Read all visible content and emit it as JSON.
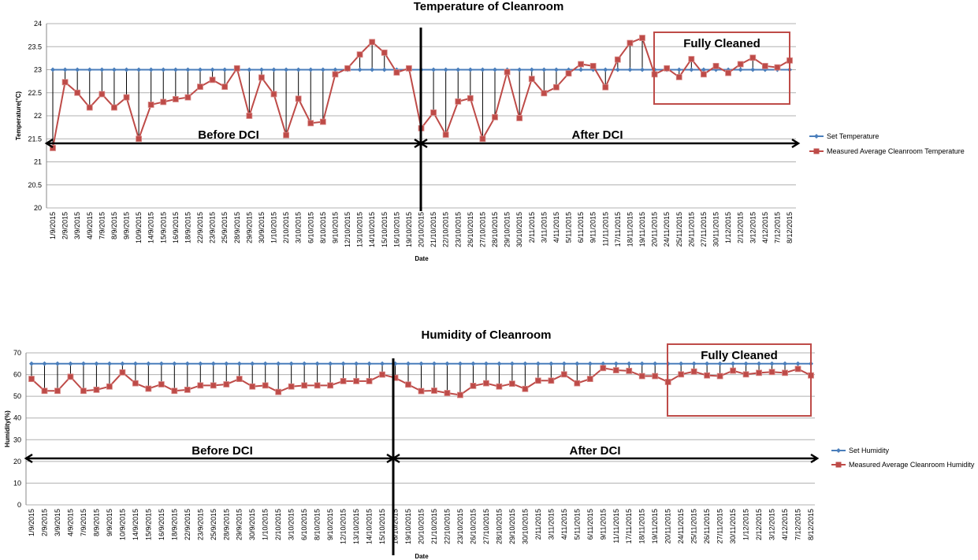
{
  "chart_data": [
    {
      "type": "line",
      "title": "Temperature of Cleanroom",
      "xlabel": "Date",
      "ylabel": "Temperature(°C)",
      "ylim": [
        20,
        24
      ],
      "yticks": [
        "20",
        "20.5",
        "21",
        "21.5",
        "22",
        "22.5",
        "23",
        "23.5",
        "24"
      ],
      "grid": true,
      "legend_position": "right",
      "categories": [
        "1/9/2015",
        "2/9/2015",
        "3/9/2015",
        "4/9/2015",
        "7/9/2015",
        "8/9/2015",
        "9/9/2015",
        "10/9/2015",
        "14/9/2015",
        "15/9/2015",
        "16/9/2015",
        "18/9/2015",
        "22/9/2015",
        "23/9/2015",
        "25/9/2015",
        "28/9/2015",
        "29/9/2015",
        "30/9/2015",
        "1/10/2015",
        "2/10/2015",
        "3/10/2015",
        "6/10/2015",
        "8/10/2015",
        "9/10/2015",
        "12/10/2015",
        "13/10/2015",
        "14/10/2015",
        "15/10/2015",
        "16/10/2015",
        "19/10/2015",
        "20/10/2015",
        "21/10/2015",
        "22/10/2015",
        "23/10/2015",
        "26/10/2015",
        "27/10/2015",
        "28/10/2015",
        "29/10/2015",
        "30/10/2015",
        "2/11/2015",
        "3/11/2015",
        "4/11/2015",
        "5/11/2015",
        "6/11/2015",
        "9/11/2015",
        "11/11/2015",
        "17/11/2015",
        "18/11/2015",
        "19/11/2015",
        "20/11/2015",
        "24/11/2015",
        "25/11/2015",
        "26/11/2015",
        "27/11/2015",
        "30/11/2015",
        "1/12/2015",
        "2/12/2015",
        "3/12/2015",
        "4/12/2015",
        "7/12/2015",
        "8/12/2015"
      ],
      "series": [
        {
          "name": "Set Temperature",
          "color": "#4a7ebb",
          "values": [
            23,
            23,
            23,
            23,
            23,
            23,
            23,
            23,
            23,
            23,
            23,
            23,
            23,
            23,
            23,
            23,
            23,
            23,
            23,
            23,
            23,
            23,
            23,
            23,
            23,
            23,
            23,
            23,
            23,
            23,
            23,
            23,
            23,
            23,
            23,
            23,
            23,
            23,
            23,
            23,
            23,
            23,
            23,
            23,
            23,
            23,
            23,
            23,
            23,
            23,
            23,
            23,
            23,
            23,
            23,
            23,
            23,
            23,
            23,
            23,
            23
          ]
        },
        {
          "name": "Measured Average Cleanroom Temperature",
          "color": "#be4b48",
          "values": [
            21.3,
            22.73,
            22.5,
            22.18,
            22.47,
            22.18,
            22.4,
            21.5,
            22.24,
            22.3,
            22.36,
            22.4,
            22.63,
            22.78,
            22.63,
            23.03,
            22.0,
            22.83,
            22.47,
            21.58,
            22.37,
            21.84,
            21.87,
            22.9,
            23.03,
            23.33,
            23.6,
            23.37,
            22.94,
            23.03,
            21.73,
            22.07,
            21.59,
            22.31,
            22.38,
            21.5,
            21.97,
            22.95,
            21.95,
            22.8,
            22.49,
            22.62,
            22.92,
            23.12,
            23.08,
            22.62,
            23.22,
            23.58,
            23.69,
            22.9,
            23.03,
            22.84,
            23.23,
            22.9,
            23.08,
            22.93,
            23.12,
            23.26,
            23.08,
            23.05,
            23.2
          ]
        }
      ],
      "annotations": {
        "before": "Before DCI",
        "after": "After DCI",
        "box": "Fully Cleaned",
        "divider_after_category": "20/10/2015"
      }
    },
    {
      "type": "line",
      "title": "Humidity of Cleanroom",
      "xlabel": "Date",
      "ylabel": "Humidity(%)",
      "ylim": [
        0,
        70
      ],
      "yticks": [
        "0",
        "10",
        "20",
        "30",
        "40",
        "50",
        "60",
        "70"
      ],
      "grid": true,
      "legend_position": "right",
      "categories": [
        "1/9/2015",
        "2/9/2015",
        "3/9/2015",
        "4/9/2015",
        "7/9/2015",
        "8/9/2015",
        "9/9/2015",
        "10/9/2015",
        "14/9/2015",
        "15/9/2015",
        "16/9/2015",
        "18/9/2015",
        "22/9/2015",
        "23/9/2015",
        "25/9/2015",
        "28/9/2015",
        "29/9/2015",
        "30/9/2015",
        "1/10/2015",
        "2/10/2015",
        "3/10/2015",
        "6/10/2015",
        "8/10/2015",
        "9/10/2015",
        "12/10/2015",
        "13/10/2015",
        "14/10/2015",
        "15/10/2015",
        "16/10/2015",
        "19/10/2015",
        "20/10/2015",
        "21/10/2015",
        "22/10/2015",
        "23/10/2015",
        "26/10/2015",
        "27/10/2015",
        "28/10/2015",
        "29/10/2015",
        "30/10/2015",
        "2/11/2015",
        "3/11/2015",
        "4/11/2015",
        "5/11/2015",
        "6/11/2015",
        "9/11/2015",
        "11/11/2015",
        "17/11/2015",
        "18/11/2015",
        "19/11/2015",
        "20/11/2015",
        "24/11/2015",
        "25/11/2015",
        "26/11/2015",
        "27/11/2015",
        "30/11/2015",
        "1/12/2015",
        "2/12/2015",
        "3/12/2015",
        "4/12/2015",
        "7/12/2015",
        "8/12/2015"
      ],
      "series": [
        {
          "name": "Set Humidity",
          "color": "#4a7ebb",
          "values": [
            65,
            65,
            65,
            65,
            65,
            65,
            65,
            65,
            65,
            65,
            65,
            65,
            65,
            65,
            65,
            65,
            65,
            65,
            65,
            65,
            65,
            65,
            65,
            65,
            65,
            65,
            65,
            65,
            65,
            65,
            65,
            65,
            65,
            65,
            65,
            65,
            65,
            65,
            65,
            65,
            65,
            65,
            65,
            65,
            65,
            65,
            65,
            65,
            65,
            65,
            65,
            65,
            65,
            65,
            65,
            65,
            65,
            65,
            65,
            65,
            65
          ]
        },
        {
          "name": "Measured Average Cleanroom Humidity",
          "color": "#be4b48",
          "values": [
            58,
            52.5,
            52.5,
            59,
            52.5,
            53,
            54.5,
            61,
            56,
            53.5,
            55.5,
            52.5,
            53,
            55,
            55,
            55.5,
            58,
            54.5,
            55,
            52,
            54.5,
            55,
            55,
            55,
            57,
            57,
            57,
            60,
            58.5,
            55.4,
            52.4,
            52.6,
            51.5,
            50.6,
            54.8,
            56,
            54.5,
            55.8,
            53.4,
            57.2,
            57.2,
            60.1,
            56,
            58,
            63,
            62,
            61.7,
            59.3,
            59.3,
            56.6,
            60.1,
            61.4,
            59.6,
            59.3,
            61.8,
            60.1,
            60.8,
            61.2,
            60.8,
            62.6,
            59.6
          ]
        }
      ],
      "annotations": {
        "before": "Before DCI",
        "after": "After DCI",
        "box": "Fully Cleaned",
        "divider_after_category": "16/10/2015"
      }
    }
  ]
}
